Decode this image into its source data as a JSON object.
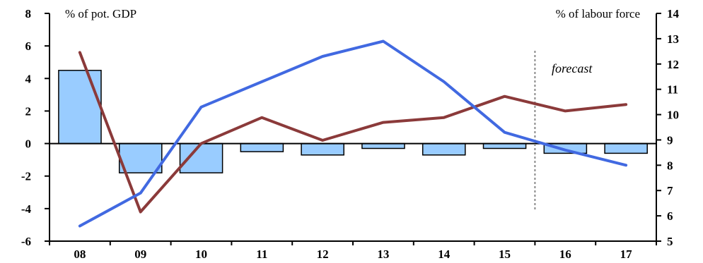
{
  "chart_data": {
    "type": "bar",
    "categories": [
      "08",
      "09",
      "10",
      "11",
      "12",
      "13",
      "14",
      "15",
      "16",
      "17"
    ],
    "ylabel_left": "% of pot. GDP",
    "ylabel_right": "% of labour force",
    "ylim_left": [
      -6,
      8
    ],
    "ylim_right": [
      5,
      14
    ],
    "yticks_left": [
      "8",
      "6",
      "4",
      "2",
      "0",
      "-2",
      "-4",
      "-6"
    ],
    "yticks_right": [
      "14",
      "13",
      "12",
      "11",
      "10",
      "9",
      "8",
      "7",
      "6",
      "5"
    ],
    "annotation": "forecast",
    "forecast_starts_after": "15",
    "grid": false,
    "series": [
      {
        "axis": "left",
        "type": "bar",
        "color": "#99ccff",
        "values": [
          4.5,
          -1.8,
          -1.8,
          -0.5,
          -0.7,
          -0.3,
          -0.7,
          -0.3,
          -0.6,
          -0.6
        ]
      },
      {
        "axis": "left",
        "type": "line",
        "color": "#8b3a3a",
        "values": [
          5.6,
          -4.2,
          0.0,
          1.6,
          0.2,
          1.3,
          1.6,
          2.9,
          2.0,
          2.4
        ]
      },
      {
        "axis": "right",
        "type": "line",
        "color": "#4169e1",
        "values": [
          5.6,
          6.9,
          10.3,
          11.3,
          12.3,
          12.9,
          11.3,
          9.3,
          8.6,
          8.0
        ]
      }
    ]
  }
}
